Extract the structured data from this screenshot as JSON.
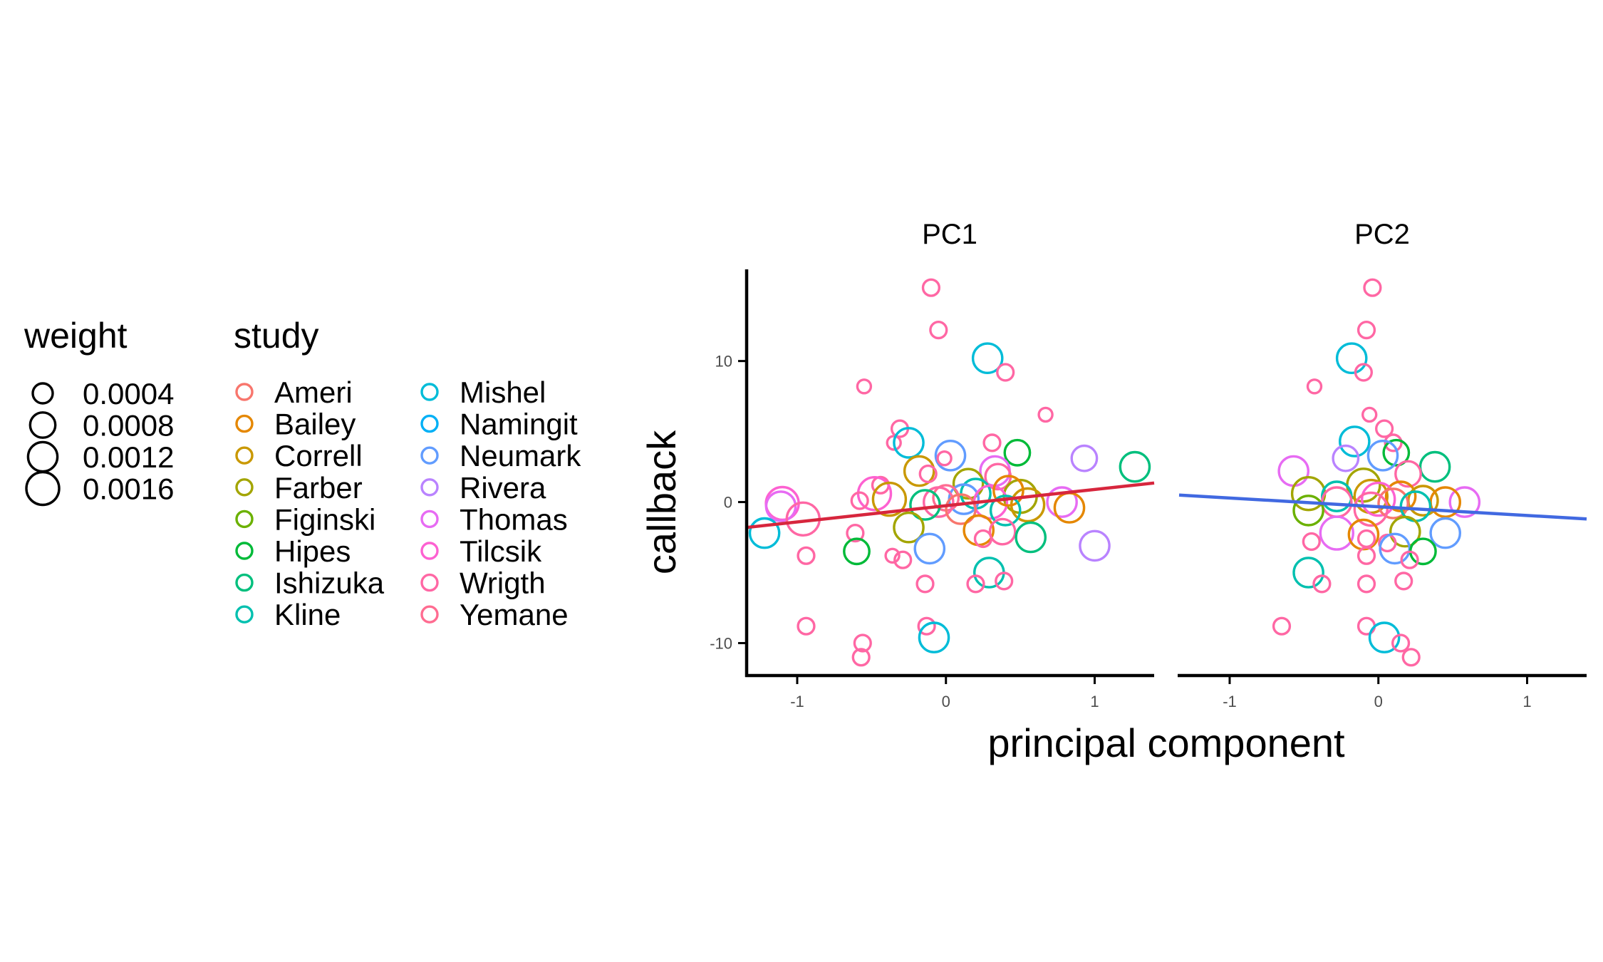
{
  "chart_data": {
    "type": "scatter",
    "xlabel": "principal component",
    "ylabel": "callback",
    "xlim": [
      -1.34,
      1.4
    ],
    "ylim": [
      -12.3,
      16.5
    ],
    "x_ticks": [
      -1,
      0,
      1
    ],
    "x_tick_labels": [
      "-1",
      "0",
      "1"
    ],
    "y_ticks": [
      -10,
      0,
      10
    ],
    "y_tick_labels": [
      "-10",
      "0",
      "10"
    ],
    "legends": {
      "weight": {
        "title": "weight",
        "labels": [
          "0.0004",
          "0.0008",
          "0.0012",
          "0.0016"
        ],
        "values": [
          0.0004,
          0.0008,
          0.0012,
          0.0016
        ]
      },
      "study": {
        "title": "study",
        "entries": [
          {
            "name": "Ameri",
            "color": "#F8766D"
          },
          {
            "name": "Bailey",
            "color": "#E58700"
          },
          {
            "name": "Correll",
            "color": "#C99800"
          },
          {
            "name": "Farber",
            "color": "#A3A500"
          },
          {
            "name": "Figinski",
            "color": "#6BB100"
          },
          {
            "name": "Hipes",
            "color": "#00BA38"
          },
          {
            "name": "Ishizuka",
            "color": "#00BF7D"
          },
          {
            "name": "Kline",
            "color": "#00C0AF"
          },
          {
            "name": "Mishel",
            "color": "#00BCD8"
          },
          {
            "name": "Namingit",
            "color": "#00B0F6"
          },
          {
            "name": "Neumark",
            "color": "#619CFF"
          },
          {
            "name": "Rivera",
            "color": "#B983FF"
          },
          {
            "name": "Thomas",
            "color": "#E76BF3"
          },
          {
            "name": "Tilcsik",
            "color": "#FD61D1"
          },
          {
            "name": "Wrigth",
            "color": "#FF67A4"
          },
          {
            "name": "Yemane",
            "color": "#FF6C91"
          }
        ]
      }
    },
    "facets": [
      {
        "title": "PC1",
        "fit_color": "#D7263D",
        "fit": {
          "x": [
            -1.34,
            1.4
          ],
          "y": [
            -1.8,
            1.35
          ]
        },
        "points": [
          {
            "x": -0.1,
            "y": 15.2,
            "w": 0.0002,
            "s": "Wrigth"
          },
          {
            "x": -0.05,
            "y": 12.2,
            "w": 0.0002,
            "s": "Wrigth"
          },
          {
            "x": 0.28,
            "y": 10.2,
            "w": 0.0012,
            "s": "Mishel"
          },
          {
            "x": 0.4,
            "y": 9.2,
            "w": 0.0002,
            "s": "Wrigth"
          },
          {
            "x": -0.55,
            "y": 8.2,
            "w": 0.0001,
            "s": "Wrigth"
          },
          {
            "x": 0.67,
            "y": 6.2,
            "w": 0.0001,
            "s": "Wrigth"
          },
          {
            "x": -0.31,
            "y": 5.2,
            "w": 0.0002,
            "s": "Wrigth"
          },
          {
            "x": -0.35,
            "y": 4.2,
            "w": 0.0001,
            "s": "Wrigth"
          },
          {
            "x": -0.25,
            "y": 4.2,
            "w": 0.0012,
            "s": "Mishel"
          },
          {
            "x": 0.31,
            "y": 4.2,
            "w": 0.0002,
            "s": "Wrigth"
          },
          {
            "x": 0.48,
            "y": 3.5,
            "w": 0.0008,
            "s": "Hipes"
          },
          {
            "x": 0.03,
            "y": 3.3,
            "w": 0.0012,
            "s": "Neumark"
          },
          {
            "x": 0.93,
            "y": 3.1,
            "w": 0.0008,
            "s": "Rivera"
          },
          {
            "x": -0.01,
            "y": 3.1,
            "w": 0.0001,
            "s": "Wrigth"
          },
          {
            "x": 1.27,
            "y": 2.5,
            "w": 0.0012,
            "s": "Ishizuka"
          },
          {
            "x": 0.33,
            "y": 2.2,
            "w": 0.0012,
            "s": "Thomas"
          },
          {
            "x": -0.18,
            "y": 2.2,
            "w": 0.0012,
            "s": "Correll"
          },
          {
            "x": -0.12,
            "y": 2.0,
            "w": 0.0002,
            "s": "Wrigth"
          },
          {
            "x": 0.35,
            "y": 1.8,
            "w": 0.0008,
            "s": "Wrigth"
          },
          {
            "x": -0.44,
            "y": 1.2,
            "w": 0.0002,
            "s": "Wrigth"
          },
          {
            "x": 0.15,
            "y": 1.3,
            "w": 0.0012,
            "s": "Farber"
          },
          {
            "x": -0.48,
            "y": 0.6,
            "w": 0.0016,
            "s": "Tilcsik"
          },
          {
            "x": -0.38,
            "y": 0.2,
            "w": 0.0016,
            "s": "Correll"
          },
          {
            "x": -0.58,
            "y": 0.1,
            "w": 0.0002,
            "s": "Wrigth"
          },
          {
            "x": 0.2,
            "y": 0.6,
            "w": 0.0012,
            "s": "Kline"
          },
          {
            "x": 0.5,
            "y": 0.4,
            "w": 0.0016,
            "s": "Farber"
          },
          {
            "x": 0.12,
            "y": 0.2,
            "w": 0.0012,
            "s": "Neumark"
          },
          {
            "x": 0.0,
            "y": 0.3,
            "w": 0.0008,
            "s": "Yemane"
          },
          {
            "x": -0.05,
            "y": 0.0,
            "w": 0.0012,
            "s": "Wrigth"
          },
          {
            "x": 0.3,
            "y": 0.0,
            "w": 0.0016,
            "s": "Tilcsik"
          },
          {
            "x": 0.55,
            "y": -0.2,
            "w": 0.0016,
            "s": "Correll"
          },
          {
            "x": 0.78,
            "y": 0.0,
            "w": 0.0012,
            "s": "Thomas"
          },
          {
            "x": 0.42,
            "y": 0.8,
            "w": 0.0012,
            "s": "Bailey"
          },
          {
            "x": 0.83,
            "y": -0.4,
            "w": 0.0012,
            "s": "Bailey"
          },
          {
            "x": -0.14,
            "y": -0.2,
            "w": 0.0012,
            "s": "Ishizuka"
          },
          {
            "x": 0.1,
            "y": -0.5,
            "w": 0.0012,
            "s": "Ameri"
          },
          {
            "x": 0.4,
            "y": -0.6,
            "w": 0.0012,
            "s": "Kline"
          },
          {
            "x": -1.1,
            "y": -0.1,
            "w": 0.0016,
            "s": "Tilcsik"
          },
          {
            "x": -1.11,
            "y": -0.3,
            "w": 0.0012,
            "s": "Thomas"
          },
          {
            "x": -0.96,
            "y": -1.2,
            "w": 0.0016,
            "s": "Wrigth"
          },
          {
            "x": -1.22,
            "y": -2.2,
            "w": 0.0012,
            "s": "Mishel"
          },
          {
            "x": -0.25,
            "y": -1.8,
            "w": 0.0012,
            "s": "Farber"
          },
          {
            "x": 0.22,
            "y": -2.0,
            "w": 0.0012,
            "s": "Bailey"
          },
          {
            "x": 0.38,
            "y": -2.1,
            "w": 0.0008,
            "s": "Wrigth"
          },
          {
            "x": 0.57,
            "y": -2.5,
            "w": 0.0012,
            "s": "Ishizuka"
          },
          {
            "x": -0.61,
            "y": -2.2,
            "w": 0.0002,
            "s": "Wrigth"
          },
          {
            "x": 0.25,
            "y": -2.6,
            "w": 0.0002,
            "s": "Wrigth"
          },
          {
            "x": 1.0,
            "y": -3.1,
            "w": 0.0012,
            "s": "Rivera"
          },
          {
            "x": -0.11,
            "y": -3.3,
            "w": 0.0012,
            "s": "Neumark"
          },
          {
            "x": -0.6,
            "y": -3.5,
            "w": 0.0008,
            "s": "Hipes"
          },
          {
            "x": -0.94,
            "y": -3.8,
            "w": 0.0002,
            "s": "Wrigth"
          },
          {
            "x": -0.36,
            "y": -3.8,
            "w": 0.0001,
            "s": "Wrigth"
          },
          {
            "x": -0.29,
            "y": -4.1,
            "w": 0.0002,
            "s": "Wrigth"
          },
          {
            "x": 0.29,
            "y": -5.0,
            "w": 0.0012,
            "s": "Kline"
          },
          {
            "x": -0.14,
            "y": -5.8,
            "w": 0.0002,
            "s": "Wrigth"
          },
          {
            "x": 0.2,
            "y": -5.8,
            "w": 0.0002,
            "s": "Wrigth"
          },
          {
            "x": 0.39,
            "y": -5.6,
            "w": 0.0002,
            "s": "Wrigth"
          },
          {
            "x": -0.94,
            "y": -8.8,
            "w": 0.0002,
            "s": "Wrigth"
          },
          {
            "x": -0.13,
            "y": -8.8,
            "w": 0.0002,
            "s": "Wrigth"
          },
          {
            "x": -0.08,
            "y": -9.6,
            "w": 0.0012,
            "s": "Mishel"
          },
          {
            "x": -0.56,
            "y": -10.0,
            "w": 0.0002,
            "s": "Wrigth"
          },
          {
            "x": -0.57,
            "y": -11.0,
            "w": 0.0002,
            "s": "Wrigth"
          }
        ]
      },
      {
        "title": "PC2",
        "fit_color": "#4169E1",
        "fit": {
          "x": [
            -1.34,
            1.4
          ],
          "y": [
            0.5,
            -1.2
          ]
        },
        "points": [
          {
            "x": -0.04,
            "y": 15.2,
            "w": 0.0002,
            "s": "Wrigth"
          },
          {
            "x": -0.08,
            "y": 12.2,
            "w": 0.0002,
            "s": "Wrigth"
          },
          {
            "x": -0.18,
            "y": 10.2,
            "w": 0.0012,
            "s": "Mishel"
          },
          {
            "x": -0.1,
            "y": 9.2,
            "w": 0.0002,
            "s": "Wrigth"
          },
          {
            "x": -0.43,
            "y": 8.2,
            "w": 0.0001,
            "s": "Wrigth"
          },
          {
            "x": -0.06,
            "y": 6.2,
            "w": 0.0001,
            "s": "Wrigth"
          },
          {
            "x": 0.04,
            "y": 5.2,
            "w": 0.0002,
            "s": "Wrigth"
          },
          {
            "x": -0.16,
            "y": 4.3,
            "w": 0.0012,
            "s": "Mishel"
          },
          {
            "x": 0.1,
            "y": 4.2,
            "w": 0.0002,
            "s": "Wrigth"
          },
          {
            "x": 0.12,
            "y": 3.5,
            "w": 0.0008,
            "s": "Hipes"
          },
          {
            "x": 0.03,
            "y": 3.3,
            "w": 0.0012,
            "s": "Neumark"
          },
          {
            "x": -0.22,
            "y": 3.1,
            "w": 0.0008,
            "s": "Rivera"
          },
          {
            "x": 0.38,
            "y": 2.5,
            "w": 0.0012,
            "s": "Ishizuka"
          },
          {
            "x": -0.57,
            "y": 2.2,
            "w": 0.0012,
            "s": "Thomas"
          },
          {
            "x": 0.2,
            "y": 2.0,
            "w": 0.0008,
            "s": "Wrigth"
          },
          {
            "x": -0.1,
            "y": 1.2,
            "w": 0.0016,
            "s": "Farber"
          },
          {
            "x": -0.47,
            "y": 0.6,
            "w": 0.0016,
            "s": "Farber"
          },
          {
            "x": -0.28,
            "y": 0.4,
            "w": 0.0012,
            "s": "Kline"
          },
          {
            "x": -0.05,
            "y": 0.4,
            "w": 0.0016,
            "s": "Correll"
          },
          {
            "x": 0.15,
            "y": 0.4,
            "w": 0.0012,
            "s": "Bailey"
          },
          {
            "x": 0.3,
            "y": 0.1,
            "w": 0.0012,
            "s": "Correll"
          },
          {
            "x": 0.58,
            "y": 0.0,
            "w": 0.0012,
            "s": "Thomas"
          },
          {
            "x": 0.45,
            "y": 0.0,
            "w": 0.0012,
            "s": "Bailey"
          },
          {
            "x": -0.28,
            "y": 0.0,
            "w": 0.0012,
            "s": "Wrigth"
          },
          {
            "x": 0.0,
            "y": 0.2,
            "w": 0.0016,
            "s": "Tilcsik"
          },
          {
            "x": 0.1,
            "y": -0.1,
            "w": 0.0012,
            "s": "Ameri"
          },
          {
            "x": 0.25,
            "y": -0.3,
            "w": 0.0012,
            "s": "Kline"
          },
          {
            "x": -0.05,
            "y": -0.5,
            "w": 0.0016,
            "s": "Wrigth"
          },
          {
            "x": -0.47,
            "y": -0.6,
            "w": 0.0012,
            "s": "Figinski"
          },
          {
            "x": 0.45,
            "y": -2.2,
            "w": 0.0012,
            "s": "Neumark"
          },
          {
            "x": -0.28,
            "y": -2.2,
            "w": 0.0016,
            "s": "Thomas"
          },
          {
            "x": -0.1,
            "y": -2.3,
            "w": 0.0012,
            "s": "Bailey"
          },
          {
            "x": 0.18,
            "y": -2.1,
            "w": 0.0012,
            "s": "Farber"
          },
          {
            "x": -0.45,
            "y": -2.8,
            "w": 0.0002,
            "s": "Wrigth"
          },
          {
            "x": -0.08,
            "y": -2.6,
            "w": 0.0002,
            "s": "Wrigth"
          },
          {
            "x": 0.06,
            "y": -2.9,
            "w": 0.0002,
            "s": "Wrigth"
          },
          {
            "x": 0.11,
            "y": -3.3,
            "w": 0.0012,
            "s": "Neumark"
          },
          {
            "x": 0.3,
            "y": -3.5,
            "w": 0.0008,
            "s": "Hipes"
          },
          {
            "x": -0.08,
            "y": -3.8,
            "w": 0.0002,
            "s": "Wrigth"
          },
          {
            "x": 0.21,
            "y": -4.1,
            "w": 0.0002,
            "s": "Wrigth"
          },
          {
            "x": -0.47,
            "y": -5.0,
            "w": 0.0012,
            "s": "Kline"
          },
          {
            "x": -0.38,
            "y": -5.8,
            "w": 0.0002,
            "s": "Wrigth"
          },
          {
            "x": -0.08,
            "y": -5.8,
            "w": 0.0002,
            "s": "Wrigth"
          },
          {
            "x": 0.17,
            "y": -5.6,
            "w": 0.0002,
            "s": "Wrigth"
          },
          {
            "x": -0.65,
            "y": -8.8,
            "w": 0.0002,
            "s": "Wrigth"
          },
          {
            "x": -0.08,
            "y": -8.8,
            "w": 0.0002,
            "s": "Wrigth"
          },
          {
            "x": 0.04,
            "y": -9.6,
            "w": 0.0012,
            "s": "Mishel"
          },
          {
            "x": 0.15,
            "y": -10.0,
            "w": 0.0002,
            "s": "Wrigth"
          },
          {
            "x": 0.22,
            "y": -11.0,
            "w": 0.0002,
            "s": "Wrigth"
          }
        ]
      }
    ]
  }
}
